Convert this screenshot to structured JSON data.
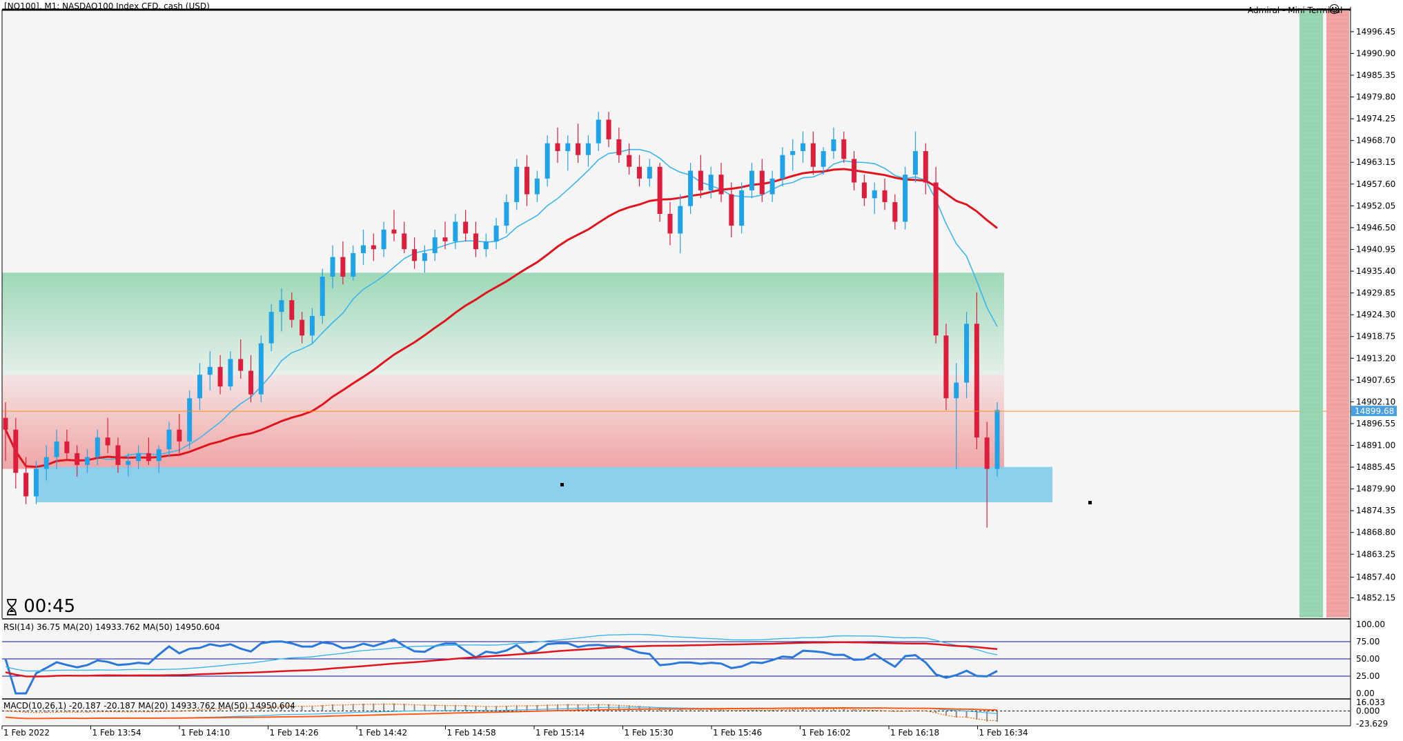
{
  "window": {
    "title": "[NQ100], M1:  NASDAQ100 Index CFD, cash (USD)",
    "ea_label": "Admiral - Mini Terminal",
    "smiley_icon": "smiley-icon"
  },
  "price_axis": {
    "ticks": [
      "14996.45",
      "14990.90",
      "14985.35",
      "14979.80",
      "14974.25",
      "14968.70",
      "14963.15",
      "14957.60",
      "14952.05",
      "14946.50",
      "14940.95",
      "14935.40",
      "14929.85",
      "14924.30",
      "14918.75",
      "14913.20",
      "14907.65",
      "14902.10",
      "14896.55",
      "14891.00",
      "14885.45",
      "14879.90",
      "14874.35",
      "14868.80",
      "14863.25",
      "14857.40",
      "14852.15"
    ],
    "current_price": "14899.68",
    "min": 14848.0,
    "max": 15001.0,
    "current_color": "#ff8c1a",
    "current_tag_color": "#4a9fe0"
  },
  "time_axis": {
    "ticks": [
      "1 Feb 2022",
      "1 Feb 13:54",
      "1 Feb 14:10",
      "1 Feb 14:26",
      "1 Feb 14:42",
      "1 Feb 14:58",
      "1 Feb 15:14",
      "1 Feb 15:30",
      "1 Feb 15:46",
      "1 Feb 16:02",
      "1 Feb 16:18",
      "1 Feb 16:34"
    ]
  },
  "timer": {
    "icon": "hourglass-icon",
    "text": "00:45"
  },
  "zones": {
    "green_color": "#8fd3ad",
    "red_color": "#f0a0a0",
    "blue_color": "#87ceeb",
    "green_top": 14935.0,
    "green_mid": 14909.0,
    "red_bottom": 14885.0,
    "blue_top": 14885.5,
    "blue_bottom": 14876.5
  },
  "rsi": {
    "label": "RSI(14) 36.75 MA(20) 14933.762 MA(50) 14950.604",
    "ticks": [
      "100.00",
      "75.00",
      "50.00",
      "25.00",
      "0.00"
    ],
    "levels": [
      75,
      50,
      25
    ]
  },
  "macd": {
    "label": "MACD(10,26,1) -20.187 -20.187 MA(20) 14933.762 MA(50) 14950.604",
    "ticks": [
      "16.033",
      "0.000",
      "-23.629"
    ]
  },
  "colors": {
    "bull": "#1fa3e6",
    "bear": "#dc1e3c",
    "ma_fast": "#3ab6ea",
    "ma_slow": "#e0141e",
    "rsi_line": "#2a78d8",
    "rsi_level": "#0a10a0"
  },
  "chart_data": {
    "type": "candlestick",
    "symbol": "[NQ100]",
    "timeframe": "M1",
    "candles": [
      [
        14898.0,
        14902.0,
        14887.0,
        14895.0
      ],
      [
        14895.0,
        14898.0,
        14880.0,
        14884.0
      ],
      [
        14884.0,
        14888.0,
        14876.0,
        14878.0
      ],
      [
        14878.0,
        14887.0,
        14876.0,
        14885.0
      ],
      [
        14885.0,
        14891.0,
        14882.0,
        14888.0
      ],
      [
        14888.0,
        14895.0,
        14885.0,
        14892.0
      ],
      [
        14892.0,
        14895.0,
        14887.0,
        14889.0
      ],
      [
        14889.0,
        14891.0,
        14883.0,
        14886.0
      ],
      [
        14886.0,
        14890.0,
        14884.0,
        14888.0
      ],
      [
        14888.0,
        14895.0,
        14886.0,
        14893.0
      ],
      [
        14893.0,
        14898.0,
        14889.0,
        14891.0
      ],
      [
        14891.0,
        14893.0,
        14884.0,
        14886.0
      ],
      [
        14886.0,
        14889.0,
        14883.0,
        14887.0
      ],
      [
        14887.0,
        14891.0,
        14885.0,
        14889.0
      ],
      [
        14889.0,
        14893.0,
        14886.0,
        14887.0
      ],
      [
        14887.0,
        14891.0,
        14884.0,
        14890.0
      ],
      [
        14890.0,
        14897.0,
        14888.0,
        14895.0
      ],
      [
        14895.0,
        14899.0,
        14889.0,
        14892.0
      ],
      [
        14892.0,
        14905.0,
        14890.0,
        14903.0
      ],
      [
        14903.0,
        14912.0,
        14900.0,
        14909.0
      ],
      [
        14909.0,
        14915.0,
        14905.0,
        14911.0
      ],
      [
        14911.0,
        14914.0,
        14904.0,
        14906.0
      ],
      [
        14906.0,
        14915.0,
        14905.0,
        14913.0
      ],
      [
        14913.0,
        14918.0,
        14908.0,
        14910.0
      ],
      [
        14910.0,
        14914.0,
        14902.0,
        14904.0
      ],
      [
        14904.0,
        14919.0,
        14902.0,
        14917.0
      ],
      [
        14917.0,
        14927.0,
        14915.0,
        14925.0
      ],
      [
        14925.0,
        14931.0,
        14920.0,
        14928.0
      ],
      [
        14928.0,
        14930.0,
        14921.0,
        14923.0
      ],
      [
        14923.0,
        14925.0,
        14917.0,
        14919.0
      ],
      [
        14919.0,
        14926.0,
        14917.0,
        14924.0
      ],
      [
        14924.0,
        14936.0,
        14922.0,
        14934.0
      ],
      [
        14934.0,
        14942.0,
        14931.0,
        14939.0
      ],
      [
        14939.0,
        14943.0,
        14932.0,
        14934.0
      ],
      [
        14934.0,
        14942.0,
        14933.0,
        14940.0
      ],
      [
        14940.0,
        14946.0,
        14937.0,
        14942.0
      ],
      [
        14942.0,
        14945.0,
        14938.0,
        14941.0
      ],
      [
        14941.0,
        14948.0,
        14939.0,
        14946.0
      ],
      [
        14946.0,
        14951.0,
        14943.0,
        14945.0
      ],
      [
        14945.0,
        14948.0,
        14940.0,
        14941.0
      ],
      [
        14941.0,
        14944.0,
        14936.0,
        14938.0
      ],
      [
        14938.0,
        14942.0,
        14935.0,
        14940.0
      ],
      [
        14940.0,
        14946.0,
        14938.0,
        14944.0
      ],
      [
        14944.0,
        14948.0,
        14941.0,
        14943.0
      ],
      [
        14943.0,
        14950.0,
        14941.0,
        14948.0
      ],
      [
        14948.0,
        14951.0,
        14943.0,
        14945.0
      ],
      [
        14945.0,
        14948.0,
        14939.0,
        14941.0
      ],
      [
        14941.0,
        14945.0,
        14939.0,
        14943.0
      ],
      [
        14943.0,
        14949.0,
        14941.0,
        14947.0
      ],
      [
        14947.0,
        14955.0,
        14945.0,
        14953.0
      ],
      [
        14953.0,
        14964.0,
        14951.0,
        14962.0
      ],
      [
        14962.0,
        14965.0,
        14952.0,
        14955.0
      ],
      [
        14955.0,
        14961.0,
        14953.0,
        14959.0
      ],
      [
        14959.0,
        14970.0,
        14957.0,
        14968.0
      ],
      [
        14968.0,
        14972.0,
        14963.0,
        14966.0
      ],
      [
        14966.0,
        14970.0,
        14961.0,
        14968.0
      ],
      [
        14968.0,
        14973.0,
        14963.0,
        14965.0
      ],
      [
        14965.0,
        14970.0,
        14962.0,
        14968.0
      ],
      [
        14968.0,
        14976.0,
        14966.0,
        14974.0
      ],
      [
        14974.0,
        14976.0,
        14967.0,
        14969.0
      ],
      [
        14969.0,
        14972.0,
        14963.0,
        14965.0
      ],
      [
        14965.0,
        14968.0,
        14960.0,
        14962.0
      ],
      [
        14962.0,
        14965.0,
        14957.0,
        14959.0
      ],
      [
        14959.0,
        14964.0,
        14957.0,
        14962.0
      ],
      [
        14962.0,
        14963.0,
        14948.0,
        14950.0
      ],
      [
        14950.0,
        14953.0,
        14942.0,
        14945.0
      ],
      [
        14945.0,
        14955.0,
        14940.0,
        14952.0
      ],
      [
        14952.0,
        14963.0,
        14950.0,
        14961.0
      ],
      [
        14961.0,
        14965.0,
        14954.0,
        14956.0
      ],
      [
        14956.0,
        14962.0,
        14954.0,
        14960.0
      ],
      [
        14960.0,
        14963.0,
        14953.0,
        14955.0
      ],
      [
        14955.0,
        14958.0,
        14944.0,
        14947.0
      ],
      [
        14947.0,
        14958.0,
        14945.0,
        14956.0
      ],
      [
        14956.0,
        14963.0,
        14954.0,
        14961.0
      ],
      [
        14961.0,
        14964.0,
        14953.0,
        14955.0
      ],
      [
        14955.0,
        14961.0,
        14953.0,
        14959.0
      ],
      [
        14959.0,
        14967.0,
        14957.0,
        14965.0
      ],
      [
        14965.0,
        14969.0,
        14961.0,
        14966.0
      ],
      [
        14966.0,
        14971.0,
        14963.0,
        14968.0
      ],
      [
        14968.0,
        14971.0,
        14960.0,
        14962.0
      ],
      [
        14962.0,
        14967.0,
        14960.0,
        14966.0
      ],
      [
        14966.0,
        14972.0,
        14964.0,
        14969.0
      ],
      [
        14969.0,
        14971.0,
        14963.0,
        14964.0
      ],
      [
        14964.0,
        14966.0,
        14956.0,
        14958.0
      ],
      [
        14958.0,
        14960.0,
        14952.0,
        14954.0
      ],
      [
        14954.0,
        14958.0,
        14950.0,
        14956.0
      ],
      [
        14956.0,
        14959.0,
        14951.0,
        14953.0
      ],
      [
        14953.0,
        14955.0,
        14946.0,
        14948.0
      ],
      [
        14948.0,
        14962.0,
        14946.0,
        14960.0
      ],
      [
        14960.0,
        14971.0,
        14958.0,
        14966.0
      ],
      [
        14966.0,
        14968.0,
        14955.0,
        14958.0
      ],
      [
        14958.0,
        14962.0,
        14917.0,
        14919.0
      ],
      [
        14919.0,
        14922.0,
        14900.0,
        14903.0
      ],
      [
        14903.0,
        14912.0,
        14885.0,
        14907.0
      ],
      [
        14907.0,
        14925.0,
        14903.0,
        14922.0
      ],
      [
        14922.0,
        14930.0,
        14890.0,
        14893.0
      ],
      [
        14893.0,
        14897.0,
        14870.0,
        14885.0
      ],
      [
        14885.0,
        14902.0,
        14883.0,
        14900.0
      ]
    ]
  }
}
